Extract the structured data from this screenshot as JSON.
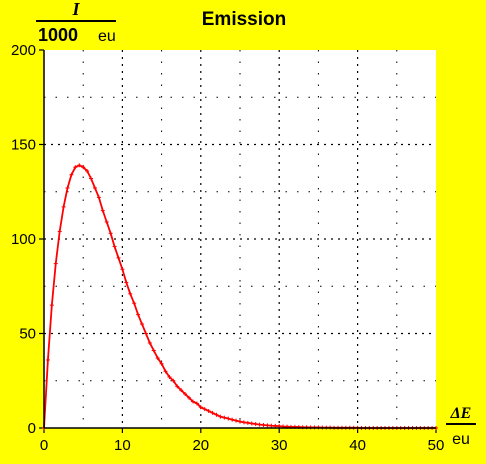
{
  "chart_data": {
    "type": "line",
    "title": "Emission",
    "ylabel": {
      "numerator": "I",
      "denominator_number": "1000",
      "denominator_unit": "eu"
    },
    "xlabel": {
      "numerator": "ΔE",
      "denominator": "eu"
    },
    "xlim": [
      0,
      50
    ],
    "ylim": [
      0,
      200
    ],
    "xticks": [
      0,
      10,
      20,
      30,
      40,
      50
    ],
    "yticks": [
      0,
      50,
      100,
      150,
      200
    ],
    "grid": true,
    "colors": {
      "background": "#ffff00",
      "plot_area": "#ffffff",
      "line": "#ff0000",
      "grid": "#000000"
    },
    "series": [
      {
        "x": [
          0,
          0.5,
          1,
          1.5,
          2,
          2.5,
          3,
          3.5,
          4,
          4.5,
          5,
          5.5,
          6,
          6.5,
          7,
          7.5,
          8,
          8.5,
          9,
          9.5,
          10,
          10.5,
          11,
          11.5,
          12,
          12.5,
          13,
          13.5,
          14,
          14.5,
          15,
          15.5,
          16,
          16.5,
          17,
          17.5,
          18,
          18.5,
          19,
          19.5,
          20,
          20.5,
          21,
          21.5,
          22,
          22.5,
          23,
          23.5,
          24,
          24.5,
          25,
          25.5,
          26,
          26.5,
          27,
          27.5,
          28,
          28.5,
          29,
          29.5,
          30,
          30.5,
          31,
          31.5,
          32,
          32.5,
          33,
          33.5,
          34,
          34.5,
          35,
          35.5,
          36,
          36.5,
          37,
          37.5,
          38,
          38.5,
          39,
          39.5,
          40,
          40.5,
          41,
          41.5,
          42,
          42.5,
          43,
          43.5,
          44,
          44.5,
          45,
          45.5,
          46,
          46.5,
          47,
          47.5,
          48,
          48.5,
          49,
          49.5,
          50
        ],
        "y": [
          0,
          36,
          65,
          87,
          104,
          117,
          127,
          134,
          138,
          139,
          138,
          136,
          132,
          127,
          122,
          115,
          109,
          103,
          96,
          90,
          84,
          77,
          71,
          66,
          60,
          55,
          50,
          45,
          41,
          37,
          34,
          30,
          27,
          25,
          22,
          20,
          18,
          16,
          14,
          13,
          11,
          10,
          9,
          8,
          7,
          6,
          5.5,
          5,
          4.4,
          3.9,
          3.4,
          3,
          2.7,
          2.4,
          2.1,
          1.8,
          1.6,
          1.4,
          1.2,
          1.1,
          1,
          0.8,
          0.7,
          0.6,
          0.6,
          0.5,
          0.4,
          0.4,
          0.3,
          0.3,
          0.3,
          0.2,
          0.2,
          0.2,
          0.1,
          0.1,
          0.1,
          0.1,
          0.1,
          0.1,
          0.1,
          0,
          0,
          0,
          0,
          0,
          0,
          0,
          0,
          0,
          0,
          0,
          0,
          0,
          0,
          0,
          0,
          0,
          0,
          0,
          0
        ]
      }
    ]
  }
}
